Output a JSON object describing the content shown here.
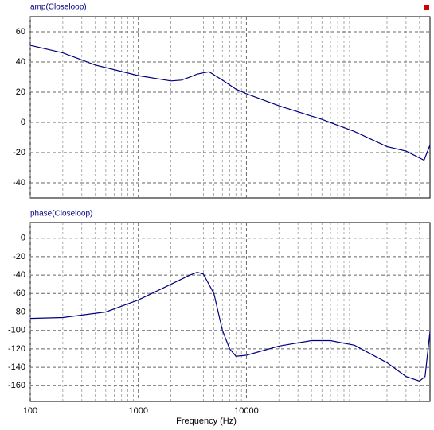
{
  "chart_data": [
    {
      "type": "line",
      "title": "amp(Closeloop)",
      "color": "#000080",
      "log_x": true,
      "grid": true,
      "x": [
        100,
        200,
        400,
        1000,
        2000,
        2500,
        3000,
        3500,
        4500,
        6000,
        8000,
        10000,
        20000,
        50000,
        100000,
        200000,
        300000,
        440000,
        500000
      ],
      "values": [
        51,
        46,
        38,
        31,
        27.5,
        28,
        30,
        32,
        33.5,
        28,
        22,
        19,
        11,
        2,
        -6,
        -16,
        -19,
        -25,
        -15
      ],
      "xlim": [
        100,
        500000
      ],
      "xticks": [
        100,
        1000,
        10000
      ],
      "minor_xticks": [
        200,
        300,
        400,
        500,
        600,
        700,
        800,
        900,
        2000,
        3000,
        4000,
        5000,
        6000,
        7000,
        8000,
        9000,
        20000,
        30000,
        40000,
        50000,
        60000,
        70000,
        80000,
        90000,
        200000,
        300000,
        400000
      ],
      "ylim": [
        -50,
        70
      ],
      "yticks": [
        -40,
        -20,
        0,
        20,
        40,
        60
      ]
    },
    {
      "type": "line",
      "title": "phase(Closeloop)",
      "color": "#000080",
      "log_x": true,
      "grid": true,
      "x": [
        100,
        200,
        500,
        1000,
        2000,
        3000,
        3500,
        4000,
        5000,
        6000,
        7000,
        8000,
        10000,
        20000,
        40000,
        60000,
        100000,
        200000,
        300000,
        400000,
        450000,
        500000
      ],
      "values": [
        -87,
        -86,
        -80,
        -67,
        -50,
        -40,
        -37,
        -39,
        -60,
        -100,
        -120,
        -128,
        -127,
        -117,
        -111,
        -111,
        -116,
        -135,
        -150,
        -155,
        -150,
        -101
      ],
      "xlim": [
        100,
        500000
      ],
      "xticks": [
        100,
        1000,
        10000
      ],
      "minor_xticks": [
        200,
        300,
        400,
        500,
        600,
        700,
        800,
        900,
        2000,
        3000,
        4000,
        5000,
        6000,
        7000,
        8000,
        9000,
        20000,
        30000,
        40000,
        50000,
        60000,
        70000,
        80000,
        90000,
        200000,
        300000,
        400000
      ],
      "ylim": [
        -177,
        17
      ],
      "yticks": [
        -160,
        -140,
        -120,
        -100,
        -80,
        -60,
        -40,
        -20,
        0
      ],
      "xlabel": "Frequency (Hz)"
    }
  ]
}
